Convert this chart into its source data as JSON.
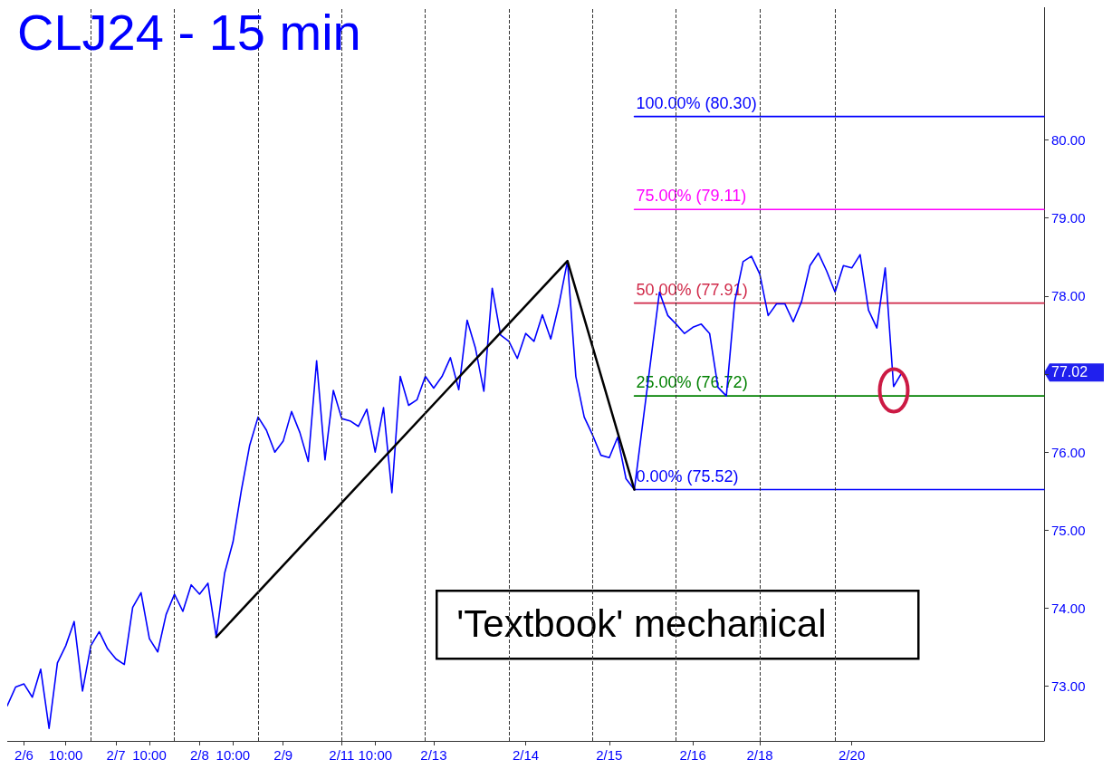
{
  "chart_data": {
    "type": "line",
    "title": "CLJ24 - 15 min",
    "categories": [
      null,
      null,
      "2/6",
      null,
      null,
      null,
      null,
      "10:00",
      null,
      null,
      null,
      null,
      null,
      "2/7",
      null,
      null,
      null,
      "10:00",
      null,
      null,
      null,
      null,
      null,
      "2/8",
      null,
      null,
      null,
      "10:00",
      null,
      null,
      null,
      null,
      null,
      "2/9",
      null,
      null,
      null,
      null,
      null,
      null,
      "2/11",
      null,
      null,
      null,
      "10:00",
      null,
      null,
      null,
      null,
      null,
      null,
      "2/13",
      null,
      null,
      null,
      null,
      null,
      null,
      null,
      null,
      null,
      null,
      "2/14",
      null,
      null,
      null,
      null,
      null,
      null,
      null,
      null,
      null,
      "2/15",
      null,
      null,
      null,
      null,
      null,
      null,
      null,
      null,
      null,
      "2/16",
      null,
      null,
      null,
      null,
      null,
      null,
      null,
      "2/18",
      null,
      null,
      null,
      null,
      null,
      null,
      null,
      null,
      null,
      null,
      "2/20",
      null,
      null,
      null,
      null,
      null,
      null,
      null,
      null,
      null,
      null,
      null,
      null,
      null,
      null,
      null,
      null,
      null,
      null,
      null,
      null,
      null,
      null,
      null
    ],
    "ylim": [
      72.3,
      81.7
    ],
    "yticks": [
      {
        "value": 73,
        "label": "73.00"
      },
      {
        "value": 74,
        "label": "74.00"
      },
      {
        "value": 75,
        "label": "75.00"
      },
      {
        "value": 76,
        "label": "76.00"
      },
      {
        "value": 77,
        "label": null
      },
      {
        "value": 78,
        "label": "78.00"
      },
      {
        "value": 79,
        "label": "79.00"
      },
      {
        "value": 80,
        "label": "80.00"
      }
    ],
    "grid": false,
    "legend": false,
    "marker": "none",
    "line_style": "solid",
    "series": [
      {
        "color": "#0000ff",
        "values": [
          72.75,
          72.99,
          73.03,
          72.86,
          73.22,
          72.46,
          73.3,
          73.52,
          73.83,
          72.94,
          73.52,
          73.7,
          73.48,
          73.35,
          73.28,
          74.01,
          74.2,
          73.61,
          73.44,
          73.92,
          74.18,
          73.96,
          74.3,
          74.18,
          74.32,
          73.63,
          74.45,
          74.85,
          75.51,
          76.09,
          76.45,
          76.28,
          76.0,
          76.14,
          76.52,
          76.25,
          75.88,
          77.17,
          75.9,
          76.79,
          76.43,
          76.4,
          76.33,
          76.55,
          76.0,
          76.57,
          75.48,
          76.97,
          76.6,
          76.67,
          76.97,
          76.82,
          76.97,
          77.21,
          76.8,
          77.69,
          77.33,
          76.78,
          78.1,
          77.5,
          77.42,
          77.2,
          77.52,
          77.42,
          77.76,
          77.45,
          77.9,
          78.45,
          76.97,
          76.45,
          76.22,
          75.96,
          75.93,
          76.19,
          75.66,
          75.52,
          76.37,
          77.21,
          78.05,
          77.75,
          77.64,
          77.52,
          77.6,
          77.64,
          77.52,
          76.83,
          76.72,
          77.93,
          78.44,
          78.51,
          78.28,
          77.75,
          77.9,
          77.9,
          77.67,
          77.93,
          78.39,
          78.55,
          78.32,
          78.05,
          78.39,
          78.36,
          78.53,
          77.82,
          77.59,
          78.36,
          76.84,
          77.02,
          null,
          null,
          null,
          null,
          null,
          null,
          null,
          null,
          null,
          null,
          null,
          null,
          null,
          null,
          null,
          null,
          null
        ]
      },
      {
        "color": "#000000",
        "values": [
          null,
          null,
          null,
          null,
          null,
          null,
          null,
          null,
          null,
          null,
          null,
          null,
          null,
          null,
          null,
          null,
          null,
          null,
          null,
          null,
          null,
          null,
          null,
          null,
          null,
          73.63,
          null,
          null,
          null,
          null,
          null,
          null,
          null,
          null,
          null,
          null,
          null,
          null,
          null,
          null,
          null,
          null,
          null,
          null,
          null,
          null,
          null,
          null,
          null,
          null,
          null,
          null,
          null,
          null,
          null,
          null,
          null,
          null,
          null,
          null,
          null,
          null,
          null,
          null,
          null,
          null,
          null,
          78.45,
          null,
          null,
          null,
          null,
          null,
          null,
          null,
          75.52,
          null,
          null,
          null,
          null,
          null,
          null,
          null,
          null,
          null,
          null,
          null,
          null,
          null,
          null,
          null,
          null,
          null,
          null,
          null,
          null,
          null,
          null,
          null,
          null,
          null,
          null,
          null,
          null,
          null,
          null,
          null,
          null,
          null,
          null,
          null,
          null,
          null,
          null,
          null,
          null,
          null,
          null,
          null,
          null,
          null,
          null,
          null,
          null,
          null
        ]
      },
      {
        "name": "100.00% (80.30)",
        "color": "#0000ff",
        "values": [
          null,
          null,
          null,
          null,
          null,
          null,
          null,
          null,
          null,
          null,
          null,
          null,
          null,
          null,
          null,
          null,
          null,
          null,
          null,
          null,
          null,
          null,
          null,
          null,
          null,
          null,
          null,
          null,
          null,
          null,
          null,
          null,
          null,
          null,
          null,
          null,
          null,
          null,
          null,
          null,
          null,
          null,
          null,
          null,
          null,
          null,
          null,
          null,
          null,
          null,
          null,
          null,
          null,
          null,
          null,
          null,
          null,
          null,
          null,
          null,
          null,
          null,
          null,
          null,
          null,
          null,
          null,
          null,
          null,
          null,
          null,
          null,
          null,
          null,
          null,
          80.3,
          80.3,
          80.3,
          80.3,
          80.3,
          80.3,
          80.3,
          80.3,
          80.3,
          80.3,
          80.3,
          80.3,
          80.3,
          80.3,
          80.3,
          80.3,
          80.3,
          80.3,
          80.3,
          80.3,
          80.3,
          80.3,
          80.3,
          80.3,
          80.3,
          80.3,
          80.3,
          80.3,
          80.3,
          80.3,
          80.3,
          80.3,
          80.3,
          80.3,
          80.3,
          80.3,
          80.3,
          80.3,
          80.3,
          80.3,
          80.3,
          80.3,
          80.3,
          80.3,
          80.3,
          80.3,
          80.3,
          80.3,
          80.3,
          80.3
        ]
      },
      {
        "name": "75.00% (79.11)",
        "color": "#ff00ff",
        "values": [
          null,
          null,
          null,
          null,
          null,
          null,
          null,
          null,
          null,
          null,
          null,
          null,
          null,
          null,
          null,
          null,
          null,
          null,
          null,
          null,
          null,
          null,
          null,
          null,
          null,
          null,
          null,
          null,
          null,
          null,
          null,
          null,
          null,
          null,
          null,
          null,
          null,
          null,
          null,
          null,
          null,
          null,
          null,
          null,
          null,
          null,
          null,
          null,
          null,
          null,
          null,
          null,
          null,
          null,
          null,
          null,
          null,
          null,
          null,
          null,
          null,
          null,
          null,
          null,
          null,
          null,
          null,
          null,
          null,
          null,
          null,
          null,
          null,
          null,
          null,
          79.11,
          79.11,
          79.11,
          79.11,
          79.11,
          79.11,
          79.11,
          79.11,
          79.11,
          79.11,
          79.11,
          79.11,
          79.11,
          79.11,
          79.11,
          79.11,
          79.11,
          79.11,
          79.11,
          79.11,
          79.11,
          79.11,
          79.11,
          79.11,
          79.11,
          79.11,
          79.11,
          79.11,
          79.11,
          79.11,
          79.11,
          79.11,
          79.11,
          79.11,
          79.11,
          79.11,
          79.11,
          79.11,
          79.11,
          79.11,
          79.11,
          79.11,
          79.11,
          79.11,
          79.11,
          79.11,
          79.11,
          79.11,
          79.11,
          79.11
        ]
      },
      {
        "name": "50.00% (77.91)",
        "color": "#d02848",
        "values": [
          null,
          null,
          null,
          null,
          null,
          null,
          null,
          null,
          null,
          null,
          null,
          null,
          null,
          null,
          null,
          null,
          null,
          null,
          null,
          null,
          null,
          null,
          null,
          null,
          null,
          null,
          null,
          null,
          null,
          null,
          null,
          null,
          null,
          null,
          null,
          null,
          null,
          null,
          null,
          null,
          null,
          null,
          null,
          null,
          null,
          null,
          null,
          null,
          null,
          null,
          null,
          null,
          null,
          null,
          null,
          null,
          null,
          null,
          null,
          null,
          null,
          null,
          null,
          null,
          null,
          null,
          null,
          null,
          null,
          null,
          null,
          null,
          null,
          null,
          null,
          77.91,
          77.91,
          77.91,
          77.91,
          77.91,
          77.91,
          77.91,
          77.91,
          77.91,
          77.91,
          77.91,
          77.91,
          77.91,
          77.91,
          77.91,
          77.91,
          77.91,
          77.91,
          77.91,
          77.91,
          77.91,
          77.91,
          77.91,
          77.91,
          77.91,
          77.91,
          77.91,
          77.91,
          77.91,
          77.91,
          77.91,
          77.91,
          77.91,
          77.91,
          77.91,
          77.91,
          77.91,
          77.91,
          77.91,
          77.91,
          77.91,
          77.91,
          77.91,
          77.91,
          77.91,
          77.91,
          77.91,
          77.91,
          77.91,
          77.91
        ]
      },
      {
        "name": "25.00% (76.72)",
        "color": "#008000",
        "values": [
          null,
          null,
          null,
          null,
          null,
          null,
          null,
          null,
          null,
          null,
          null,
          null,
          null,
          null,
          null,
          null,
          null,
          null,
          null,
          null,
          null,
          null,
          null,
          null,
          null,
          null,
          null,
          null,
          null,
          null,
          null,
          null,
          null,
          null,
          null,
          null,
          null,
          null,
          null,
          null,
          null,
          null,
          null,
          null,
          null,
          null,
          null,
          null,
          null,
          null,
          null,
          null,
          null,
          null,
          null,
          null,
          null,
          null,
          null,
          null,
          null,
          null,
          null,
          null,
          null,
          null,
          null,
          null,
          null,
          null,
          null,
          null,
          null,
          null,
          null,
          76.72,
          76.72,
          76.72,
          76.72,
          76.72,
          76.72,
          76.72,
          76.72,
          76.72,
          76.72,
          76.72,
          76.72,
          76.72,
          76.72,
          76.72,
          76.72,
          76.72,
          76.72,
          76.72,
          76.72,
          76.72,
          76.72,
          76.72,
          76.72,
          76.72,
          76.72,
          76.72,
          76.72,
          76.72,
          76.72,
          76.72,
          76.72,
          76.72,
          76.72,
          76.72,
          76.72,
          76.72,
          76.72,
          76.72,
          76.72,
          76.72,
          76.72,
          76.72,
          76.72,
          76.72,
          76.72,
          76.72,
          76.72,
          76.72,
          76.72
        ]
      },
      {
        "name": "0.00% (75.52)",
        "color": "#0000ff",
        "values": [
          null,
          null,
          null,
          null,
          null,
          null,
          null,
          null,
          null,
          null,
          null,
          null,
          null,
          null,
          null,
          null,
          null,
          null,
          null,
          null,
          null,
          null,
          null,
          null,
          null,
          null,
          null,
          null,
          null,
          null,
          null,
          null,
          null,
          null,
          null,
          null,
          null,
          null,
          null,
          null,
          null,
          null,
          null,
          null,
          null,
          null,
          null,
          null,
          null,
          null,
          null,
          null,
          null,
          null,
          null,
          null,
          null,
          null,
          null,
          null,
          null,
          null,
          null,
          null,
          null,
          null,
          null,
          null,
          null,
          null,
          null,
          null,
          null,
          null,
          null,
          75.52,
          75.52,
          75.52,
          75.52,
          75.52,
          75.52,
          75.52,
          75.52,
          75.52,
          75.52,
          75.52,
          75.52,
          75.52,
          75.52,
          75.52,
          75.52,
          75.52,
          75.52,
          75.52,
          75.52,
          75.52,
          75.52,
          75.52,
          75.52,
          75.52,
          75.52,
          75.52,
          75.52,
          75.52,
          75.52,
          75.52,
          75.52,
          75.52,
          75.52,
          75.52,
          75.52,
          75.52,
          75.52,
          75.52,
          75.52,
          75.52,
          75.52,
          75.52,
          75.52,
          75.52,
          75.52,
          75.52,
          75.52,
          75.52,
          75.52
        ]
      }
    ],
    "annotations": [
      "'Textbook' mechanical",
      "77.02"
    ]
  }
}
